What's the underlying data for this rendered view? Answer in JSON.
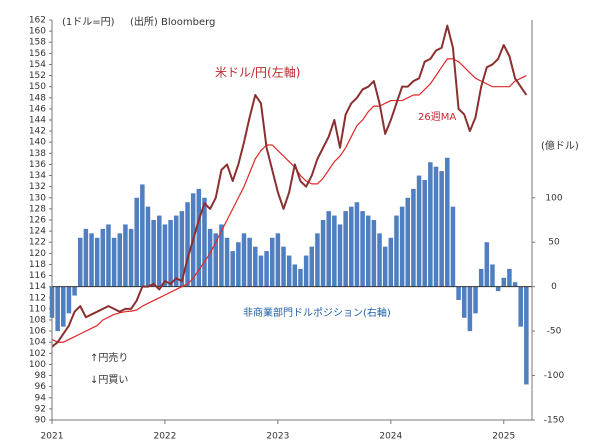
{
  "chart_data": {
    "type": "combo",
    "annotations": {
      "left_unit": "(1ドル=円)",
      "source": "(出所) Bloomberg",
      "price_label": "米ドル/円(左軸)",
      "ma_label": "26週MA",
      "right_unit": "(億ドル)",
      "position_label": "非商業部門ドルポジション(右軸)",
      "up_note": "↑円売り",
      "down_note": "↓円買い"
    },
    "x": [
      2021.0,
      2021.05,
      2021.1,
      2021.15,
      2021.2,
      2021.25,
      2021.3,
      2021.35,
      2021.4,
      2021.45,
      2021.5,
      2021.55,
      2021.6,
      2021.65,
      2021.7,
      2021.75,
      2021.8,
      2021.85,
      2021.9,
      2021.95,
      2022.0,
      2022.05,
      2022.1,
      2022.15,
      2022.2,
      2022.25,
      2022.3,
      2022.35,
      2022.4,
      2022.45,
      2022.5,
      2022.55,
      2022.6,
      2022.65,
      2022.7,
      2022.75,
      2022.8,
      2022.85,
      2022.9,
      2022.95,
      2023.0,
      2023.05,
      2023.1,
      2023.15,
      2023.2,
      2023.25,
      2023.3,
      2023.35,
      2023.4,
      2023.45,
      2023.5,
      2023.55,
      2023.6,
      2023.65,
      2023.7,
      2023.75,
      2023.8,
      2023.85,
      2023.9,
      2023.95,
      2024.0,
      2024.05,
      2024.1,
      2024.15,
      2024.2,
      2024.25,
      2024.3,
      2024.35,
      2024.4,
      2024.45,
      2024.5,
      2024.55,
      2024.6,
      2024.65,
      2024.7,
      2024.75,
      2024.8,
      2024.85,
      2024.9,
      2024.95,
      2025.0,
      2025.05,
      2025.1,
      2025.15,
      2025.2
    ],
    "series": [
      {
        "name": "非商業部門ドルポジション",
        "type": "bar",
        "axis": "y2",
        "color": "#4f7fc0",
        "values": [
          -35,
          -50,
          -45,
          -30,
          -10,
          55,
          65,
          60,
          55,
          65,
          70,
          55,
          60,
          70,
          65,
          100,
          115,
          90,
          75,
          80,
          70,
          75,
          80,
          85,
          95,
          105,
          110,
          100,
          65,
          60,
          70,
          55,
          40,
          50,
          60,
          55,
          45,
          35,
          40,
          55,
          60,
          45,
          35,
          25,
          20,
          35,
          45,
          60,
          75,
          85,
          80,
          70,
          85,
          90,
          95,
          85,
          80,
          75,
          60,
          45,
          55,
          80,
          90,
          100,
          110,
          125,
          120,
          140,
          135,
          130,
          145,
          90,
          -15,
          -35,
          -50,
          -30,
          20,
          50,
          25,
          -5,
          10,
          20,
          5,
          -45,
          -110
        ]
      },
      {
        "name": "26週MA",
        "type": "line",
        "color": "#e02828",
        "width": 1.2,
        "values": [
          104.5,
          104,
          104,
          104.5,
          105,
          105.5,
          106,
          106.5,
          107,
          108,
          108.5,
          109,
          109.3,
          109.5,
          109.6,
          109.8,
          110.5,
          111,
          111.5,
          112,
          112.5,
          113,
          113.5,
          114,
          114.5,
          115.5,
          117,
          118.5,
          120,
          122,
          124,
          126,
          128,
          130,
          132,
          134.5,
          137,
          138.5,
          139.5,
          139.5,
          138.5,
          137.5,
          136.5,
          135.5,
          134,
          133,
          132.5,
          132.5,
          133.5,
          135,
          136.5,
          137.5,
          139,
          141,
          143,
          144,
          145.5,
          146.5,
          146.5,
          147,
          147.5,
          147.5,
          147.5,
          148,
          148.5,
          148.5,
          149.5,
          150.5,
          152,
          153.5,
          155,
          155,
          154.5,
          153.5,
          152.5,
          151.5,
          151,
          150.5,
          150,
          150,
          150,
          150,
          151,
          151.5,
          152
        ]
      },
      {
        "name": "米ドル/円",
        "type": "line",
        "color": "#8b3030",
        "width": 2,
        "values": [
          103.2,
          104,
          105.5,
          107,
          109.5,
          110.5,
          108.5,
          109,
          109.5,
          110,
          110.5,
          110,
          109.5,
          110,
          110,
          111.5,
          114,
          114,
          114.5,
          113.5,
          115,
          114.5,
          115.5,
          115,
          119,
          122.5,
          126,
          129,
          128,
          130,
          135,
          136,
          133,
          136,
          140,
          144.5,
          148.5,
          147,
          139,
          135,
          131,
          128,
          131,
          136,
          133,
          132,
          134,
          137,
          139,
          141,
          144,
          139,
          145,
          147,
          148,
          149.5,
          150,
          151,
          147,
          141.5,
          144,
          147,
          150,
          150,
          151,
          151.5,
          154.5,
          155,
          156.5,
          157,
          161,
          157,
          146,
          145,
          142,
          144.5,
          150,
          153.5,
          154,
          155,
          157.5,
          155.5,
          151.5,
          150,
          148.5
        ]
      }
    ],
    "xlim": [
      2021,
      2025.25
    ],
    "xticks": [
      2021,
      2022,
      2023,
      2024,
      2025
    ],
    "ylim": [
      90,
      162
    ],
    "yticks": [
      90,
      92,
      94,
      96,
      98,
      100,
      102,
      104,
      106,
      108,
      110,
      112,
      114,
      116,
      118,
      120,
      122,
      124,
      126,
      128,
      130,
      132,
      134,
      136,
      138,
      140,
      142,
      144,
      146,
      148,
      150,
      152,
      154,
      156,
      158,
      160,
      162
    ],
    "y2lim": [
      -150,
      300
    ],
    "y2ticks": [
      -150,
      -100,
      -50,
      0,
      50,
      100
    ]
  }
}
